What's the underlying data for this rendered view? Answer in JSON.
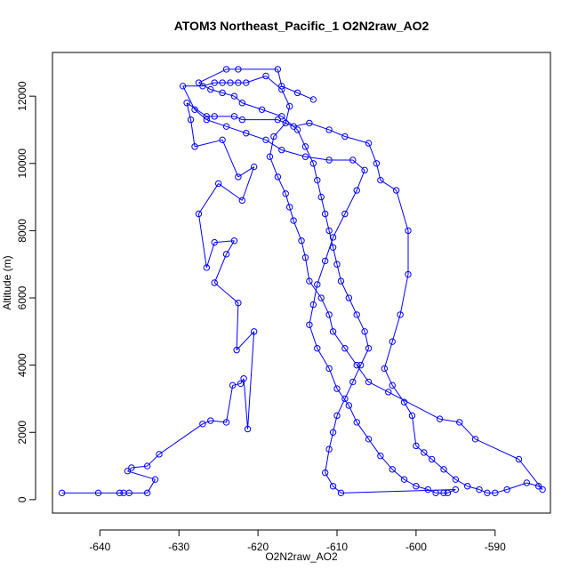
{
  "chart_data": {
    "type": "line",
    "title": "ATOM3 Northeast_Pacific_1 O2N2raw_AO2",
    "xlabel": "O2N2raw_AO2",
    "ylabel": "Altitude (m)",
    "xlim": [
      -646,
      -583
    ],
    "ylim": [
      -400,
      13300
    ],
    "x_ticks": [
      -640,
      -630,
      -620,
      -610,
      -600,
      -590
    ],
    "y_ticks": [
      0,
      2000,
      4000,
      6000,
      8000,
      10000,
      12000
    ],
    "x_tick_labels": [
      "-640",
      "-630",
      "-620",
      "-610",
      "-600",
      "-590"
    ],
    "y_tick_labels": [
      "0",
      "2000",
      "4000",
      "6000",
      "8000",
      "10000",
      "12000"
    ],
    "grid": false,
    "legend": "none",
    "series": [
      {
        "color": "#0000ff",
        "marker": "open-circle",
        "points": [
          [
            -644.8,
            200
          ],
          [
            -640.2,
            200
          ],
          [
            -637.5,
            200
          ],
          [
            -637.0,
            200
          ],
          [
            -636.3,
            200
          ],
          [
            -634.0,
            200
          ],
          [
            -633.0,
            600
          ],
          [
            -636.5,
            850
          ],
          [
            -636.0,
            950
          ],
          [
            -634.0,
            1000
          ],
          [
            -632.5,
            1350
          ],
          [
            -627.0,
            2250
          ],
          [
            -626.0,
            2350
          ],
          [
            -624.0,
            2300
          ],
          [
            -623.2,
            3400
          ],
          [
            -622.2,
            3450
          ],
          [
            -621.8,
            3600
          ],
          [
            -621.3,
            2100
          ],
          [
            -620.5,
            5000
          ],
          [
            -622.7,
            4450
          ],
          [
            -622.5,
            5850
          ],
          [
            -625.5,
            6450
          ],
          [
            -624.0,
            7300
          ],
          [
            -623.0,
            7700
          ],
          [
            -625.5,
            7650
          ],
          [
            -626.5,
            6900
          ],
          [
            -627.5,
            8500
          ],
          [
            -625.0,
            9400
          ],
          [
            -622.0,
            8900
          ],
          [
            -620.5,
            9900
          ],
          [
            -622.5,
            9600
          ],
          [
            -624.5,
            10700
          ],
          [
            -628.0,
            10500
          ],
          [
            -628.5,
            11300
          ],
          [
            -629.0,
            11800
          ],
          [
            -626.5,
            11400
          ],
          [
            -625.5,
            11400
          ],
          [
            -623.0,
            11400
          ],
          [
            -622.0,
            11300
          ],
          [
            -617.5,
            11300
          ],
          [
            -615.5,
            11100
          ],
          [
            -613.5,
            11200
          ],
          [
            -611.0,
            11000
          ],
          [
            -609.0,
            10800
          ],
          [
            -606.0,
            10600
          ],
          [
            -605.0,
            10000
          ],
          [
            -604.5,
            9500
          ],
          [
            -602.5,
            9200
          ],
          [
            -601.0,
            8000
          ],
          [
            -601.0,
            6700
          ],
          [
            -602.0,
            5500
          ],
          [
            -603.0,
            4700
          ],
          [
            -604.0,
            3900
          ],
          [
            -603.0,
            3400
          ],
          [
            -601.5,
            2900
          ],
          [
            -600.5,
            2500
          ],
          [
            -600.0,
            1600
          ],
          [
            -599.0,
            1400
          ],
          [
            -598.0,
            1200
          ],
          [
            -596.5,
            900
          ],
          [
            -595.0,
            600
          ],
          [
            -593.5,
            400
          ],
          [
            -592.0,
            300
          ],
          [
            -591.0,
            200
          ],
          [
            -590.0,
            200
          ],
          [
            -588.5,
            300
          ],
          [
            -586.0,
            500
          ],
          [
            -584.5,
            400
          ],
          [
            -584.0,
            300
          ],
          [
            -587.0,
            1200
          ],
          [
            -592.5,
            1800
          ],
          [
            -594.5,
            2300
          ],
          [
            -597.0,
            2400
          ],
          [
            -603.5,
            3200
          ],
          [
            -606.0,
            3500
          ],
          [
            -607.5,
            4000
          ],
          [
            -609.0,
            4500
          ],
          [
            -610.5,
            5000
          ],
          [
            -611.0,
            5500
          ],
          [
            -612.0,
            6000
          ],
          [
            -613.5,
            6500
          ],
          [
            -614.0,
            7200
          ],
          [
            -614.5,
            7700
          ],
          [
            -615.5,
            8300
          ],
          [
            -616.0,
            8700
          ],
          [
            -616.5,
            9100
          ],
          [
            -617.5,
            9600
          ],
          [
            -618.5,
            10200
          ],
          [
            -618.0,
            10800
          ],
          [
            -616.5,
            11200
          ],
          [
            -616.0,
            11700
          ],
          [
            -617.0,
            12200
          ],
          [
            -619.0,
            12600
          ],
          [
            -621.5,
            12400
          ],
          [
            -622.5,
            12400
          ],
          [
            -623.5,
            12400
          ],
          [
            -624.5,
            12400
          ],
          [
            -625.5,
            12400
          ],
          [
            -627.0,
            12300
          ],
          [
            -629.5,
            12300
          ],
          [
            -628.0,
            11600
          ],
          [
            -626.5,
            11300
          ],
          [
            -624.0,
            11100
          ],
          [
            -621.5,
            10900
          ],
          [
            -619.0,
            10700
          ],
          [
            -617.0,
            10400
          ],
          [
            -614.0,
            10200
          ],
          [
            -611.0,
            10100
          ],
          [
            -608.0,
            10100
          ],
          [
            -606.5,
            9800
          ],
          [
            -607.5,
            9200
          ],
          [
            -609.0,
            8500
          ],
          [
            -610.5,
            7800
          ],
          [
            -611.5,
            7100
          ],
          [
            -612.5,
            6400
          ],
          [
            -613.0,
            5800
          ],
          [
            -613.5,
            5200
          ],
          [
            -612.5,
            4500
          ],
          [
            -611.0,
            3900
          ],
          [
            -610.0,
            3300
          ],
          [
            -608.5,
            2800
          ],
          [
            -607.5,
            2300
          ],
          [
            -606.0,
            1800
          ],
          [
            -604.5,
            1300
          ],
          [
            -603.0,
            900
          ],
          [
            -601.5,
            600
          ],
          [
            -600.0,
            400
          ],
          [
            -598.5,
            300
          ],
          [
            -597.5,
            200
          ],
          [
            -596.5,
            200
          ],
          [
            -596.0,
            200
          ],
          [
            -595.0,
            300
          ],
          [
            -609.5,
            200
          ],
          [
            -610.5,
            400
          ],
          [
            -611.5,
            800
          ],
          [
            -611.0,
            1500
          ],
          [
            -610.5,
            2000
          ],
          [
            -610.0,
            2500
          ],
          [
            -609.0,
            3000
          ],
          [
            -608.0,
            3500
          ],
          [
            -607.0,
            4000
          ],
          [
            -606.0,
            4500
          ],
          [
            -606.5,
            5000
          ],
          [
            -607.5,
            5500
          ],
          [
            -608.5,
            6000
          ],
          [
            -609.5,
            6500
          ],
          [
            -610.0,
            7000
          ],
          [
            -610.5,
            7500
          ],
          [
            -611.0,
            8000
          ],
          [
            -611.5,
            8500
          ],
          [
            -612.0,
            9000
          ],
          [
            -612.5,
            9500
          ],
          [
            -613.0,
            10000
          ],
          [
            -614.0,
            10500
          ],
          [
            -615.0,
            11000
          ],
          [
            -617.0,
            11400
          ],
          [
            -619.5,
            11600
          ],
          [
            -622.0,
            11800
          ],
          [
            -623.0,
            12000
          ],
          [
            -624.5,
            12100
          ],
          [
            -626.0,
            12200
          ],
          [
            -627.5,
            12400
          ],
          [
            -624.0,
            12800
          ],
          [
            -622.5,
            12800
          ],
          [
            -617.5,
            12800
          ],
          [
            -617.0,
            12300
          ],
          [
            -615.0,
            12100
          ],
          [
            -613.0,
            11900
          ]
        ]
      }
    ]
  }
}
